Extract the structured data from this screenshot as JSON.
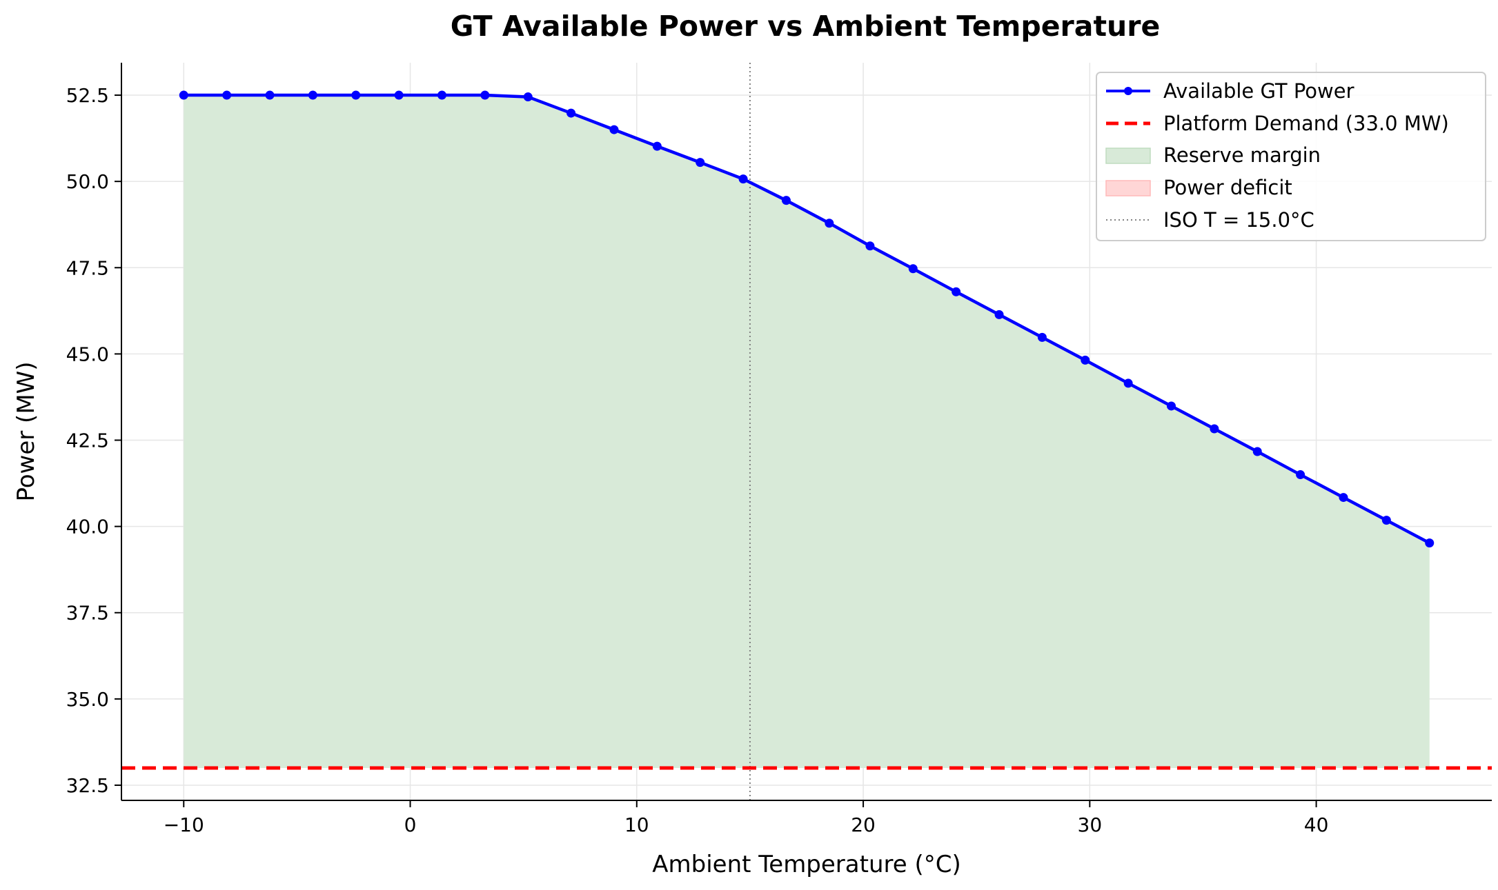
{
  "chart_data": {
    "type": "line",
    "title": "GT Available Power vs Ambient Temperature",
    "xlabel": "Ambient Temperature (°C)",
    "ylabel": "Power (MW)",
    "xlim": [
      -12.75,
      47.75
    ],
    "ylim": [
      32.06,
      53.44
    ],
    "xticks": [
      -10,
      0,
      10,
      20,
      30,
      40
    ],
    "xtick_labels": [
      "−10",
      "0",
      "10",
      "20",
      "30",
      "40"
    ],
    "yticks": [
      32.5,
      35.0,
      37.5,
      40.0,
      42.5,
      45.0,
      47.5,
      50.0,
      52.5
    ],
    "ytick_labels": [
      "32.5",
      "35.0",
      "37.5",
      "40.0",
      "42.5",
      "45.0",
      "47.5",
      "50.0",
      "52.5"
    ],
    "grid": true,
    "legend_position": "top-right",
    "series": [
      {
        "name": "Available GT Power",
        "color": "#0000ff",
        "marker": "circle",
        "x": [
          -10.0,
          -8.1,
          -6.2,
          -4.3,
          -2.4,
          -0.5,
          1.4,
          3.3,
          5.2,
          7.1,
          9.0,
          10.9,
          12.8,
          14.7,
          16.6,
          18.5,
          20.3,
          22.2,
          24.1,
          26.0,
          27.9,
          29.8,
          31.7,
          33.6,
          35.5,
          37.4,
          39.3,
          41.2,
          43.1,
          45.0
        ],
        "y": [
          52.5,
          52.5,
          52.5,
          52.5,
          52.5,
          52.5,
          52.5,
          52.5,
          52.45,
          51.98,
          51.5,
          51.02,
          50.55,
          50.07,
          49.45,
          48.79,
          48.13,
          47.47,
          46.8,
          46.14,
          45.48,
          44.82,
          44.15,
          43.49,
          42.83,
          42.17,
          41.5,
          40.84,
          40.18,
          39.52
        ]
      },
      {
        "name": "Platform Demand (33.0 MW)",
        "color": "#ff0000",
        "style": "dashed",
        "value": 33.0
      },
      {
        "name": "Reserve margin",
        "color": "#d8ead8",
        "type": "area"
      },
      {
        "name": "Power deficit",
        "color": "#ffd6d6",
        "type": "area"
      },
      {
        "name": "ISO T = 15.0°C",
        "color": "#808080",
        "style": "dotted",
        "x_value": 15.0
      }
    ]
  }
}
